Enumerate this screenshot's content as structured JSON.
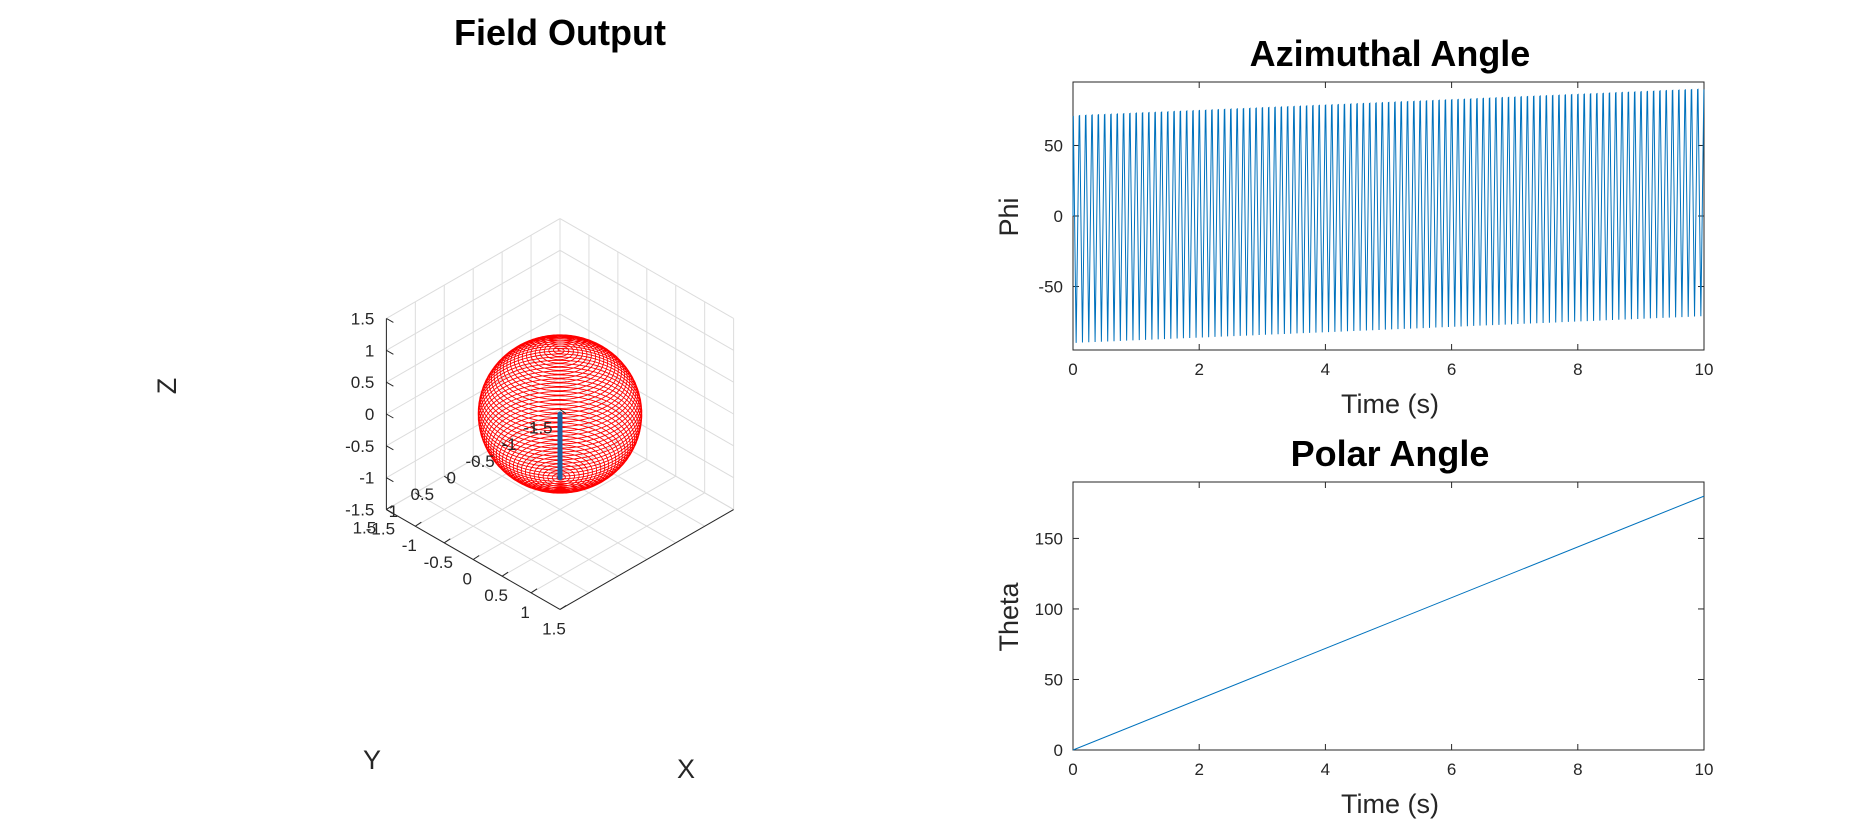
{
  "chart_data": [
    {
      "type": "line3d",
      "title": "Field Output",
      "xlabel": "X",
      "ylabel": "Y",
      "zlabel": "Z",
      "xlim": [
        -1.5,
        1.5
      ],
      "ylim": [
        -1.5,
        1.5
      ],
      "zlim": [
        -1.5,
        1.5
      ],
      "xticks": [
        "-1.5",
        "-1",
        "-0.5",
        "0",
        "0.5",
        "1",
        "1.5"
      ],
      "yticks": [
        "-1.5",
        "-1",
        "-0.5",
        "0",
        "0.5",
        "1",
        "1.5"
      ],
      "zticks": [
        "-1.5",
        "-1",
        "-0.5",
        "0",
        "0.5",
        "1",
        "1.5"
      ],
      "grid": true,
      "series": [
        {
          "kind": "unit-sphere-spiral-trajectory",
          "color": "#ff0000",
          "radius": 1,
          "turns": 55
        },
        {
          "kind": "vertical-segment",
          "color": "#1f5f9f",
          "x": 0,
          "y": 0,
          "z": [
            -1,
            0
          ]
        }
      ]
    },
    {
      "type": "line",
      "title": "Azimuthal Angle",
      "xlabel": "Time (s)",
      "ylabel": "Phi",
      "xlim": [
        0,
        10
      ],
      "ylim": [
        -95,
        95
      ],
      "xticks": [
        "0",
        "2",
        "4",
        "6",
        "8",
        "10"
      ],
      "yticks": [
        "-50",
        "0",
        "50"
      ],
      "series": [
        {
          "kind": "oscillation",
          "color": "#0072bd",
          "cycles": 100,
          "amplitude_start": [
            71,
            -90
          ],
          "amplitude_end": [
            90,
            -71
          ]
        }
      ]
    },
    {
      "type": "line",
      "title": "Polar Angle",
      "xlabel": "Time (s)",
      "ylabel": "Theta",
      "xlim": [
        0,
        10
      ],
      "ylim": [
        0,
        190
      ],
      "xticks": [
        "0",
        "2",
        "4",
        "6",
        "8",
        "10"
      ],
      "yticks": [
        "0",
        "50",
        "100",
        "150"
      ],
      "series": [
        {
          "kind": "linear",
          "color": "#0072bd",
          "x": [
            0,
            10
          ],
          "y": [
            0,
            180
          ]
        }
      ]
    }
  ]
}
